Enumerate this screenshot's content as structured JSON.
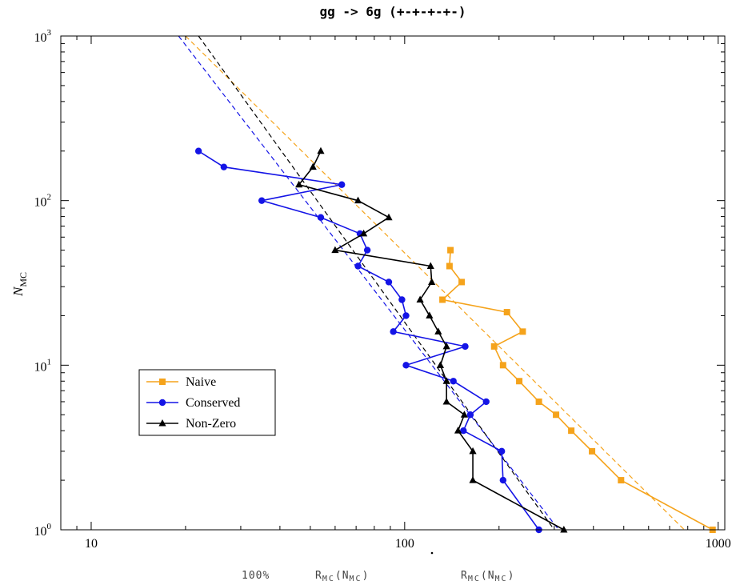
{
  "chart_data": {
    "type": "line",
    "title": "gg -> 6g (+-+-+-+-)",
    "xlabel_text": "R",
    "xlabel_sub": "MC",
    "xlabel_arg": "(N",
    "xlabel_argsub": "MC",
    "xlabel_close": ")",
    "ylabel": "N",
    "ylabel_sub": "MC",
    "xlabel_prefix": "100%",
    "xscale": "log",
    "yscale": "log",
    "xlim": [
      8,
      1050
    ],
    "ylim": [
      1,
      1000
    ],
    "x_ticks": [
      {
        "value": 10,
        "label": "10"
      },
      {
        "value": 100,
        "label": "100"
      },
      {
        "value": 1000,
        "label": "1000"
      }
    ],
    "y_ticks": [
      {
        "value": 1,
        "base": "10",
        "exp": "0"
      },
      {
        "value": 10,
        "base": "10",
        "exp": "1"
      },
      {
        "value": 100,
        "base": "10",
        "exp": "2"
      },
      {
        "value": 1000,
        "base": "10",
        "exp": "3"
      }
    ],
    "legend_position": "left",
    "series": [
      {
        "name": "Naive",
        "color": "#f5a31b",
        "marker": "square",
        "points": [
          [
            140,
            50
          ],
          [
            139,
            40
          ],
          [
            152,
            32
          ],
          [
            132,
            25
          ],
          [
            212,
            21
          ],
          [
            238,
            16
          ],
          [
            193,
            13
          ],
          [
            206,
            10
          ],
          [
            232,
            8
          ],
          [
            268,
            6
          ],
          [
            304,
            5
          ],
          [
            340,
            4
          ],
          [
            396,
            3
          ],
          [
            490,
            2
          ],
          [
            960,
            1
          ]
        ],
        "fit": [
          [
            20,
            1000
          ],
          [
            780,
            1
          ]
        ]
      },
      {
        "name": "Conserved",
        "color": "#1414e6",
        "marker": "circle",
        "points": [
          [
            22,
            200
          ],
          [
            26.5,
            160
          ],
          [
            63,
            125
          ],
          [
            35,
            100
          ],
          [
            54,
            79
          ],
          [
            72,
            63
          ],
          [
            76,
            50
          ],
          [
            71,
            40
          ],
          [
            89,
            32
          ],
          [
            98,
            25
          ],
          [
            101,
            20
          ],
          [
            92,
            16
          ],
          [
            156,
            13
          ],
          [
            101,
            10
          ],
          [
            143,
            8
          ],
          [
            182,
            6
          ],
          [
            162,
            5
          ],
          [
            154,
            4
          ],
          [
            204,
            3
          ],
          [
            206,
            2
          ],
          [
            268,
            1
          ]
        ],
        "fit": [
          [
            19,
            1000
          ],
          [
            310,
            1
          ]
        ]
      },
      {
        "name": "Non-Zero",
        "color": "#000000",
        "marker": "triangle",
        "points": [
          [
            54,
            200
          ],
          [
            51,
            160
          ],
          [
            46,
            125
          ],
          [
            71,
            100
          ],
          [
            89,
            79
          ],
          [
            74,
            63
          ],
          [
            60,
            50
          ],
          [
            121,
            40
          ],
          [
            122,
            32
          ],
          [
            112,
            25
          ],
          [
            120,
            20
          ],
          [
            128,
            16
          ],
          [
            136,
            13
          ],
          [
            130,
            10
          ],
          [
            136,
            8
          ],
          [
            136,
            6
          ],
          [
            155,
            5
          ],
          [
            148,
            4
          ],
          [
            165,
            3
          ],
          [
            165,
            2
          ],
          [
            322,
            1
          ]
        ],
        "fit": [
          [
            22,
            1000
          ],
          [
            300,
            1
          ]
        ]
      }
    ]
  }
}
